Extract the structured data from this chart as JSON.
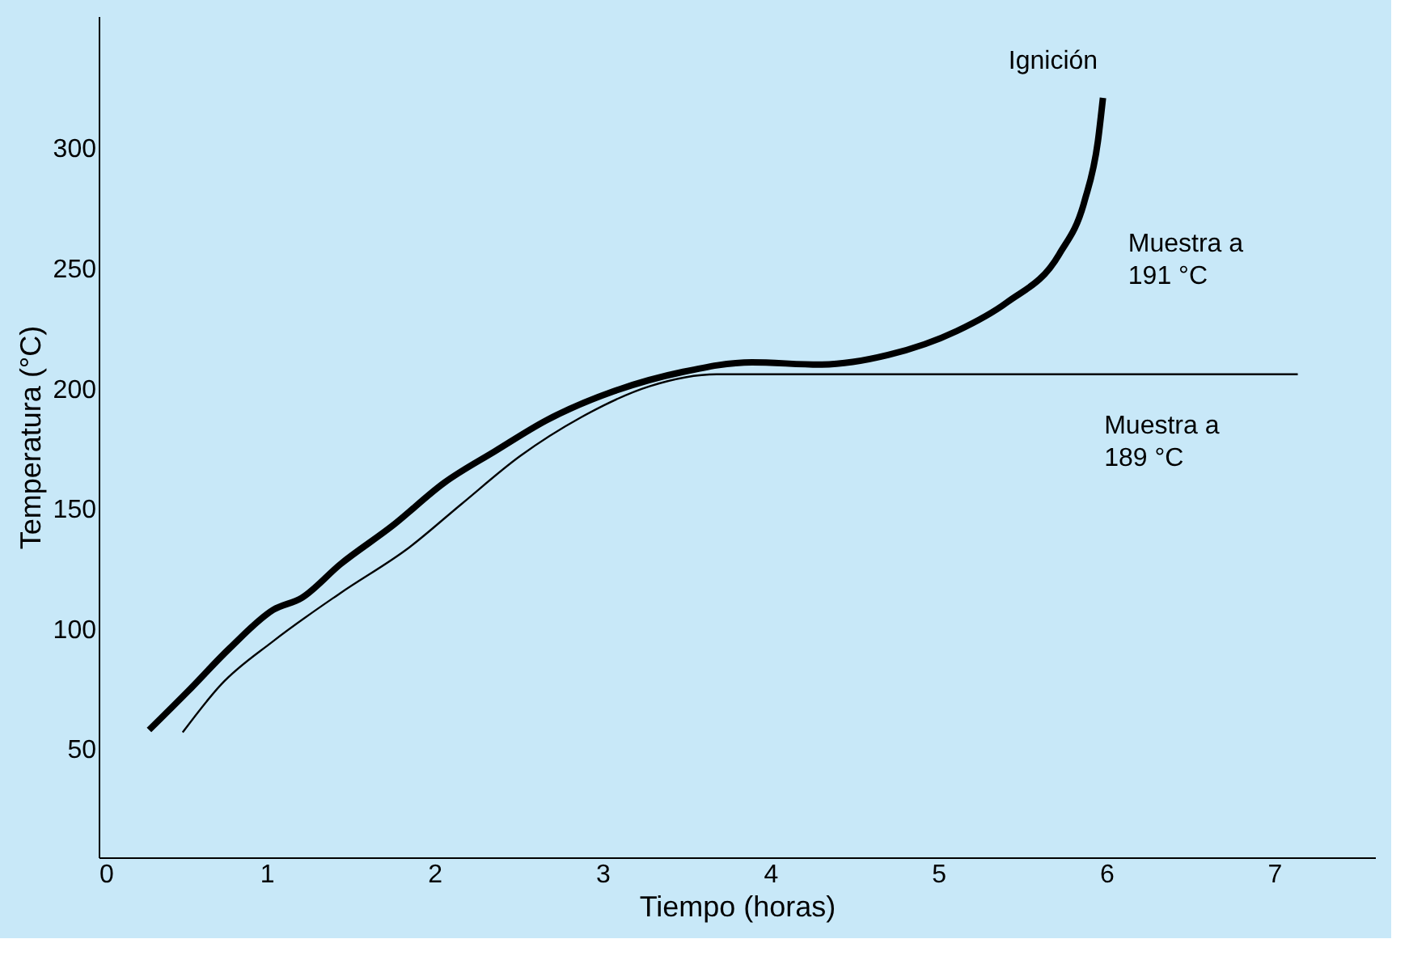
{
  "chart_data": {
    "type": "line",
    "xlabel": "Tiempo (horas)",
    "ylabel": "Temperatura (°C)",
    "xlim": [
      0,
      7.6
    ],
    "ylim": [
      5,
      355
    ],
    "xticks": [
      0,
      1,
      2,
      3,
      4,
      5,
      6,
      7
    ],
    "yticks": [
      50,
      100,
      150,
      200,
      250,
      300
    ],
    "grid": false,
    "series": [
      {
        "color": "#000000",
        "x": [
          0.3,
          0.53,
          0.78,
          1.04,
          1.21,
          1.44,
          1.75,
          2.06,
          2.36,
          2.67,
          3.07,
          3.48,
          3.89,
          4.29,
          4.7,
          5.11,
          5.41,
          5.72,
          5.87,
          5.95,
          5.98
        ],
        "values": [
          58,
          74,
          92,
          108,
          113,
          127,
          143,
          161,
          174,
          187,
          199,
          207,
          211,
          210,
          214,
          224,
          236,
          256,
          278,
          303,
          321
        ]
      },
      {
        "color": "#000000",
        "x": [
          0.5,
          0.73,
          1.04,
          1.44,
          1.85,
          2.16,
          2.51,
          2.87,
          3.28,
          3.68,
          7.14
        ],
        "values": [
          57,
          77,
          95,
          115,
          134,
          152,
          172,
          188,
          201,
          206,
          206
        ]
      }
    ],
    "annotations": [
      "Ignición",
      "Muestra a\n191 °C",
      "Muestra a\n189 °C"
    ]
  }
}
